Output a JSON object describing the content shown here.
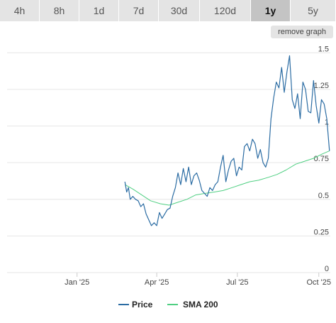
{
  "tabs": [
    {
      "label": "4h",
      "active": false
    },
    {
      "label": "8h",
      "active": false
    },
    {
      "label": "1d",
      "active": false
    },
    {
      "label": "7d",
      "active": false
    },
    {
      "label": "30d",
      "active": false
    },
    {
      "label": "120d",
      "active": false
    },
    {
      "label": "1y",
      "active": true
    },
    {
      "label": "5y",
      "active": false
    }
  ],
  "remove_graph_label": "remove graph",
  "chart_data": {
    "type": "line",
    "title": "",
    "xlabel": "",
    "ylabel": "",
    "ylim": [
      0,
      1.55
    ],
    "y_ticks": [
      0,
      0.25,
      0.5,
      0.75,
      1,
      1.25,
      1.5
    ],
    "y_tick_labels": [
      "0",
      "0.25",
      "0.5",
      "0.75",
      "1",
      "1.25",
      "1.5"
    ],
    "x_tick_labels": [
      "Jan '25",
      "Apr '25",
      "Jul '25",
      "Oct '25"
    ],
    "x_ticks": [
      "2025-01-01",
      "2025-04-01",
      "2025-07-01",
      "2025-10-01"
    ],
    "xlim": [
      "2024-10-14",
      "2025-10-14"
    ],
    "grid": true,
    "legend": "bottom-center",
    "series": [
      {
        "name": "Price",
        "color": "#2b6ca3",
        "x": [
          "2025-02-24",
          "2025-02-26",
          "2025-02-28",
          "2025-03-02",
          "2025-03-05",
          "2025-03-08",
          "2025-03-11",
          "2025-03-14",
          "2025-03-17",
          "2025-03-20",
          "2025-03-23",
          "2025-03-26",
          "2025-03-29",
          "2025-04-01",
          "2025-04-04",
          "2025-04-07",
          "2025-04-10",
          "2025-04-13",
          "2025-04-16",
          "2025-04-19",
          "2025-04-22",
          "2025-04-25",
          "2025-04-28",
          "2025-05-01",
          "2025-05-04",
          "2025-05-07",
          "2025-05-10",
          "2025-05-13",
          "2025-05-16",
          "2025-05-19",
          "2025-05-22",
          "2025-05-25",
          "2025-05-28",
          "2025-05-31",
          "2025-06-03",
          "2025-06-06",
          "2025-06-09",
          "2025-06-12",
          "2025-06-15",
          "2025-06-18",
          "2025-06-21",
          "2025-06-24",
          "2025-06-27",
          "2025-06-30",
          "2025-07-03",
          "2025-07-06",
          "2025-07-09",
          "2025-07-12",
          "2025-07-15",
          "2025-07-18",
          "2025-07-21",
          "2025-07-24",
          "2025-07-27",
          "2025-07-30",
          "2025-08-02",
          "2025-08-05",
          "2025-08-08",
          "2025-08-11",
          "2025-08-14",
          "2025-08-17",
          "2025-08-20",
          "2025-08-23",
          "2025-08-26",
          "2025-08-29",
          "2025-09-01",
          "2025-09-04",
          "2025-09-07",
          "2025-09-10",
          "2025-09-13",
          "2025-09-16",
          "2025-09-19",
          "2025-09-22",
          "2025-09-25",
          "2025-09-28",
          "2025-10-01",
          "2025-10-04",
          "2025-10-07",
          "2025-10-10",
          "2025-10-13"
        ],
        "values": [
          0.62,
          0.55,
          0.58,
          0.5,
          0.52,
          0.5,
          0.49,
          0.45,
          0.47,
          0.4,
          0.36,
          0.32,
          0.34,
          0.32,
          0.41,
          0.37,
          0.4,
          0.43,
          0.44,
          0.52,
          0.58,
          0.68,
          0.6,
          0.71,
          0.62,
          0.72,
          0.6,
          0.66,
          0.68,
          0.63,
          0.56,
          0.54,
          0.52,
          0.58,
          0.56,
          0.6,
          0.62,
          0.72,
          0.8,
          0.62,
          0.7,
          0.76,
          0.78,
          0.66,
          0.72,
          0.7,
          0.86,
          0.88,
          0.83,
          0.91,
          0.88,
          0.78,
          0.84,
          0.75,
          0.72,
          0.78,
          1.05,
          1.19,
          1.3,
          1.26,
          1.4,
          1.23,
          1.37,
          1.48,
          1.18,
          1.12,
          1.22,
          1.05,
          1.3,
          1.25,
          1.1,
          1.09,
          1.31,
          1.14,
          1.02,
          1.18,
          1.15,
          1.05,
          0.83
        ]
      },
      {
        "name": "SMA 200",
        "color": "#4fcf82",
        "x": [
          "2025-02-24",
          "2025-03-05",
          "2025-03-15",
          "2025-03-25",
          "2025-04-05",
          "2025-04-15",
          "2025-04-25",
          "2025-05-05",
          "2025-05-15",
          "2025-05-25",
          "2025-06-05",
          "2025-06-15",
          "2025-06-25",
          "2025-07-05",
          "2025-07-15",
          "2025-07-25",
          "2025-08-05",
          "2025-08-15",
          "2025-08-25",
          "2025-09-05",
          "2025-09-15",
          "2025-09-25",
          "2025-10-05",
          "2025-10-13"
        ],
        "values": [
          0.6,
          0.57,
          0.53,
          0.49,
          0.47,
          0.46,
          0.48,
          0.5,
          0.53,
          0.54,
          0.55,
          0.56,
          0.58,
          0.6,
          0.62,
          0.63,
          0.65,
          0.67,
          0.7,
          0.74,
          0.76,
          0.78,
          0.81,
          0.83
        ]
      }
    ]
  }
}
